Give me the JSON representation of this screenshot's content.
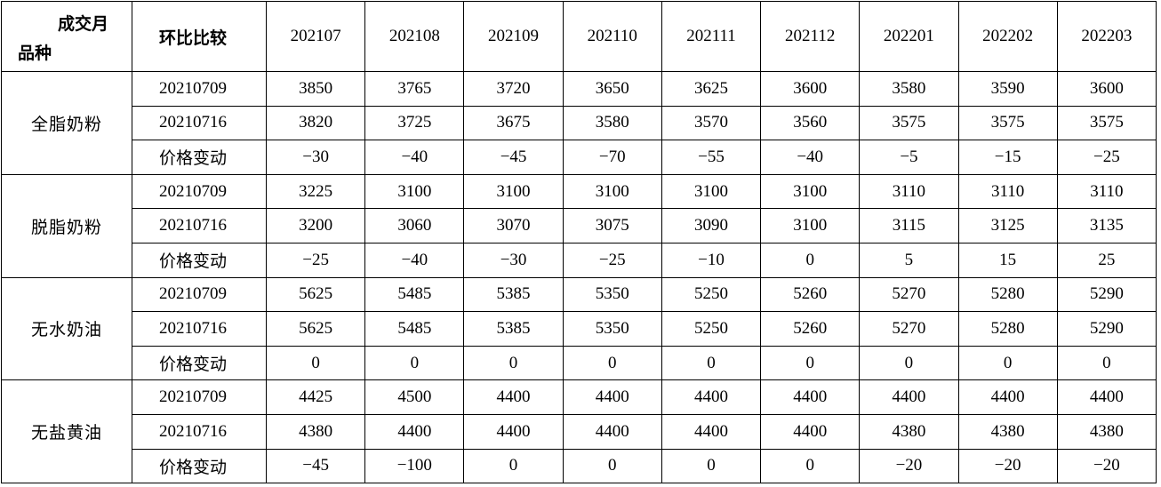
{
  "header": {
    "corner_top": "成交月",
    "corner_bottom": "品种",
    "compare": "环比比较",
    "months": [
      "202107",
      "202108",
      "202109",
      "202110",
      "202111",
      "202112",
      "202201",
      "202202",
      "202203"
    ]
  },
  "groups": [
    {
      "name": "全脂奶粉",
      "rows": [
        {
          "label": "20210709",
          "values": [
            "3850",
            "3765",
            "3720",
            "3650",
            "3625",
            "3600",
            "3580",
            "3590",
            "3600"
          ]
        },
        {
          "label": "20210716",
          "values": [
            "3820",
            "3725",
            "3675",
            "3580",
            "3570",
            "3560",
            "3575",
            "3575",
            "3575"
          ]
        },
        {
          "label": "价格变动",
          "values": [
            "−30",
            "−40",
            "−45",
            "−70",
            "−55",
            "−40",
            "−5",
            "−15",
            "−25"
          ]
        }
      ]
    },
    {
      "name": "脱脂奶粉",
      "rows": [
        {
          "label": "20210709",
          "values": [
            "3225",
            "3100",
            "3100",
            "3100",
            "3100",
            "3100",
            "3110",
            "3110",
            "3110"
          ]
        },
        {
          "label": "20210716",
          "values": [
            "3200",
            "3060",
            "3070",
            "3075",
            "3090",
            "3100",
            "3115",
            "3125",
            "3135"
          ]
        },
        {
          "label": "价格变动",
          "values": [
            "−25",
            "−40",
            "−30",
            "−25",
            "−10",
            "0",
            "5",
            "15",
            "25"
          ]
        }
      ]
    },
    {
      "name": "无水奶油",
      "rows": [
        {
          "label": "20210709",
          "values": [
            "5625",
            "5485",
            "5385",
            "5350",
            "5250",
            "5260",
            "5270",
            "5280",
            "5290"
          ]
        },
        {
          "label": "20210716",
          "values": [
            "5625",
            "5485",
            "5385",
            "5350",
            "5250",
            "5260",
            "5270",
            "5280",
            "5290"
          ]
        },
        {
          "label": "价格变动",
          "values": [
            "0",
            "0",
            "0",
            "0",
            "0",
            "0",
            "0",
            "0",
            "0"
          ]
        }
      ]
    },
    {
      "name": "无盐黄油",
      "rows": [
        {
          "label": "20210709",
          "values": [
            "4425",
            "4500",
            "4400",
            "4400",
            "4400",
            "4400",
            "4400",
            "4400",
            "4400"
          ]
        },
        {
          "label": "20210716",
          "values": [
            "4380",
            "4400",
            "4400",
            "4400",
            "4400",
            "4400",
            "4380",
            "4380",
            "4380"
          ]
        },
        {
          "label": "价格变动",
          "values": [
            "−45",
            "−100",
            "0",
            "0",
            "0",
            "0",
            "−20",
            "−20",
            "−20"
          ]
        }
      ]
    }
  ]
}
